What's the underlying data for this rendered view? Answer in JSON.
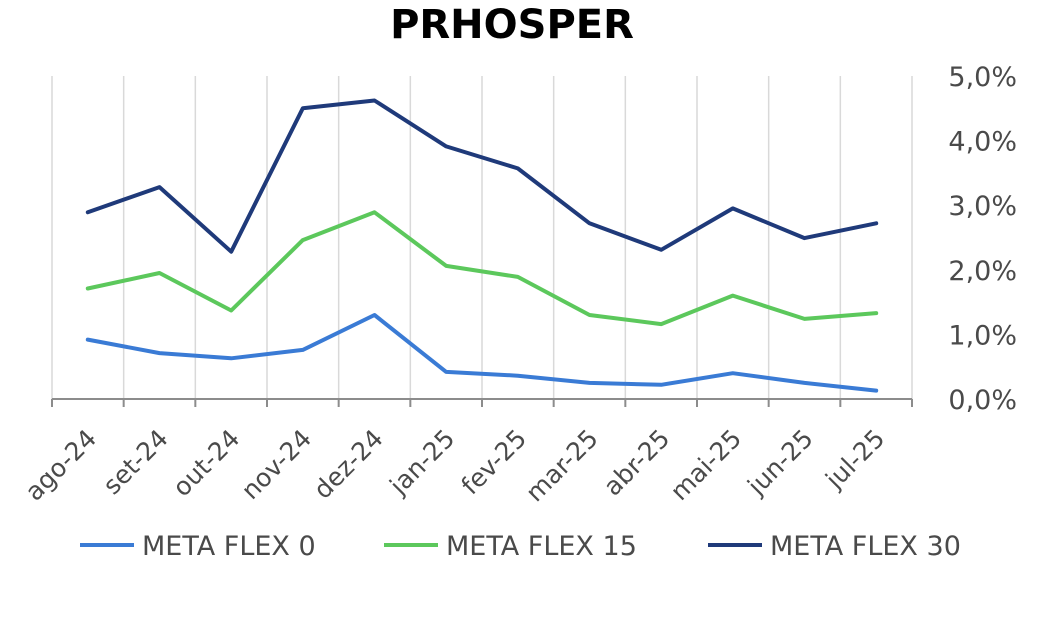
{
  "chart_data": {
    "type": "line",
    "title": "PRHOSPER",
    "xlabel": "",
    "ylabel": "",
    "categories": [
      "ago-24",
      "set-24",
      "out-24",
      "nov-24",
      "dez-24",
      "jan-25",
      "fev-25",
      "mar-25",
      "abr-25",
      "mai-25",
      "jun-25",
      "jul-25"
    ],
    "y_axis_side": "right",
    "ylim": [
      0,
      5
    ],
    "yticks": [
      {
        "value": 0,
        "label": "0,0%"
      },
      {
        "value": 1,
        "label": "1,0%"
      },
      {
        "value": 2,
        "label": "2,0%"
      },
      {
        "value": 3,
        "label": "3,0%"
      },
      {
        "value": 4,
        "label": "4,0%"
      },
      {
        "value": 5,
        "label": "5,0%"
      }
    ],
    "grid": "vertical",
    "legend_position": "bottom",
    "series": [
      {
        "name": "META FLEX 0",
        "color": "#3a7bd5",
        "values": [
          0.92,
          0.71,
          0.63,
          0.76,
          1.3,
          0.42,
          0.36,
          0.25,
          0.22,
          0.4,
          0.25,
          0.13
        ]
      },
      {
        "name": "META FLEX 15",
        "color": "#5cc85c",
        "values": [
          1.71,
          1.95,
          1.37,
          2.46,
          2.89,
          2.06,
          1.89,
          1.3,
          1.16,
          1.6,
          1.24,
          1.33
        ]
      },
      {
        "name": "META FLEX 30",
        "color": "#1f3a7a",
        "values": [
          2.89,
          3.28,
          2.28,
          4.5,
          4.62,
          3.91,
          3.57,
          2.72,
          2.31,
          2.95,
          2.49,
          2.72
        ]
      }
    ]
  }
}
